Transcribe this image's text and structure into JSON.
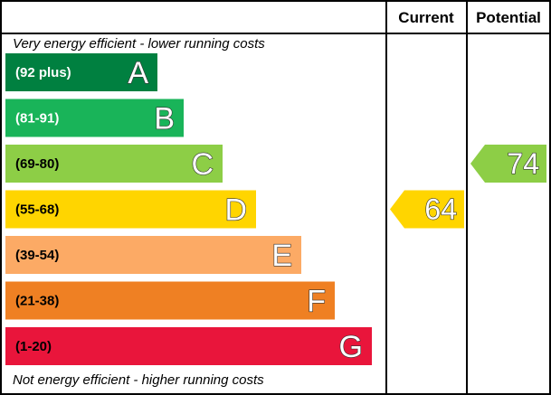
{
  "header": {
    "current_label": "Current",
    "potential_label": "Potential"
  },
  "notes": {
    "top": "Very energy efficient - lower running costs",
    "bottom": "Not energy efficient - higher running costs"
  },
  "chart_data": {
    "type": "bar",
    "bands": [
      {
        "letter": "A",
        "range": "(92 plus)",
        "color": "#008040",
        "text_color": "#ffffff"
      },
      {
        "letter": "B",
        "range": "(81-91)",
        "color": "#19b459",
        "text_color": "#ffffff"
      },
      {
        "letter": "C",
        "range": "(69-80)",
        "color": "#8dce46",
        "text_color": "#000000"
      },
      {
        "letter": "D",
        "range": "(55-68)",
        "color": "#ffd500",
        "text_color": "#000000"
      },
      {
        "letter": "E",
        "range": "(39-54)",
        "color": "#fcaa65",
        "text_color": "#000000"
      },
      {
        "letter": "F",
        "range": "(21-38)",
        "color": "#ef8023",
        "text_color": "#000000"
      },
      {
        "letter": "G",
        "range": "(1-20)",
        "color": "#e9153b",
        "text_color": "#000000"
      }
    ],
    "current": {
      "value": 64,
      "band": "D",
      "color": "#ffd500"
    },
    "potential": {
      "value": 74,
      "band": "C",
      "color": "#8dce46"
    }
  }
}
